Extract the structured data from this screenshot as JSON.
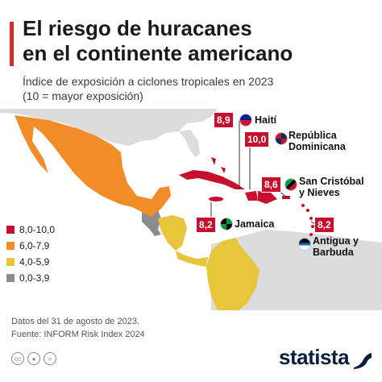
{
  "header": {
    "title_line1": "El riesgo de huracanes",
    "title_line2": "en el continente americano",
    "subtitle_line1": "Índice de exposición a ciclones tropicales en 2023",
    "subtitle_line2": "(10 = mayor exposición)"
  },
  "countries": [
    {
      "name": "Haití",
      "value": "8,9"
    },
    {
      "name_line1": "República",
      "name_line2": "Dominicana",
      "value": "10,0"
    },
    {
      "name_line1": "San Cristóbal",
      "name_line2": "y Nieves",
      "value": "8,6"
    },
    {
      "name": "Jamaica",
      "value": "8,2"
    },
    {
      "name_line1": "Antigua y",
      "name_line2": "Barbuda",
      "value": "8,2"
    }
  ],
  "legend": [
    {
      "label": "8,0-10,0",
      "color": "#c8102e"
    },
    {
      "label": "6,0-7,9",
      "color": "#f28c28"
    },
    {
      "label": "4,0-5,9",
      "color": "#e8c53a"
    },
    {
      "label": "0,0-3,9",
      "color": "#8c8c8c"
    }
  ],
  "footer": {
    "date_note": "Datos del 31 de agosto de 2023.",
    "source": "Fuente: INFORM Risk Index 2024"
  },
  "brand": {
    "logo": "statista"
  },
  "colors": {
    "accent": "#d62b2b",
    "no_data": "#dcdcdc"
  }
}
